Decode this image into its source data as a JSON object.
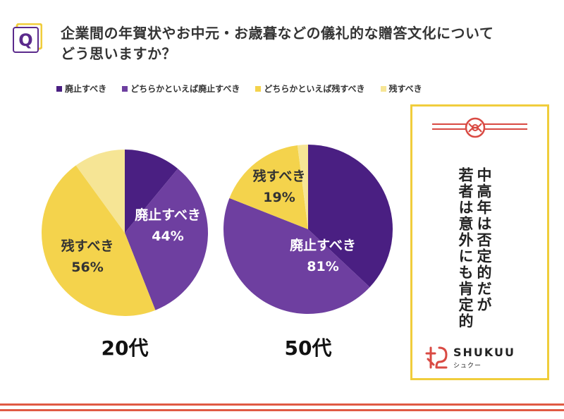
{
  "question": {
    "badge": "Q",
    "line1": "企業間の年賀状やお中元・お歳暮などの儀礼的な贈答文化について",
    "line2": "どう思いますか？"
  },
  "legend": [
    {
      "label": "廃止すべき",
      "color": "#4a1f82"
    },
    {
      "label": "どちらかといえば廃止すべき",
      "color": "#6e3fa0"
    },
    {
      "label": "どちらかといえば残すべき",
      "color": "#f4d34c"
    },
    {
      "label": "残すべき",
      "color": "#f6e595"
    }
  ],
  "chart_data": [
    {
      "type": "pie",
      "title": "20代",
      "slices": [
        {
          "name": "廃止すべき",
          "value": 11,
          "color": "#4a1f82"
        },
        {
          "name": "どちらかといえば廃止すべき",
          "value": 33,
          "color": "#6e3fa0"
        },
        {
          "name": "どちらかといえば残すべき",
          "value": 46,
          "color": "#f4d34c"
        },
        {
          "name": "残すべき",
          "value": 10,
          "color": "#f6e595"
        }
      ],
      "groups": [
        {
          "label": "廃止すべき",
          "value": "44%"
        },
        {
          "label": "残すべき",
          "value": "56%"
        }
      ]
    },
    {
      "type": "pie",
      "title": "50代",
      "slices": [
        {
          "name": "廃止すべき",
          "value": 37,
          "color": "#4a1f82"
        },
        {
          "name": "どちらかといえば廃止すべき",
          "value": 44,
          "color": "#6e3fa0"
        },
        {
          "name": "どちらかといえば残すべき",
          "value": 17,
          "color": "#f4d34c"
        },
        {
          "name": "残すべき",
          "value": 2,
          "color": "#f6e595"
        }
      ],
      "groups": [
        {
          "label": "廃止すべき",
          "value": "81%"
        },
        {
          "label": "残すべき",
          "value": "19%"
        }
      ]
    }
  ],
  "card": {
    "line1": "中高年は否定的だが",
    "line2": "若者は意外にも肯定的",
    "brand": "SHUKUU",
    "brand_sub": "シュクー",
    "border_color": "#f0cd3c",
    "accent_color": "#d94a43"
  }
}
